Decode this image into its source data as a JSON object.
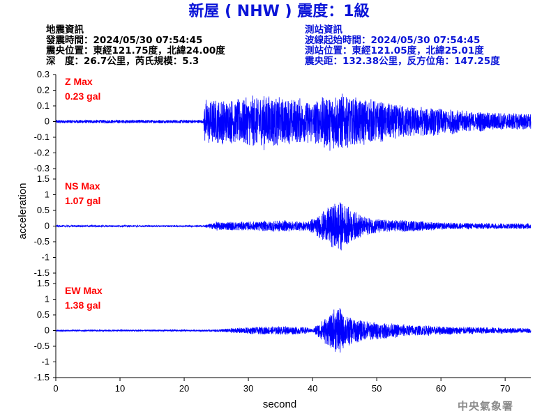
{
  "title": "新屋 ( NHW ) 震度：1級",
  "quake_info": {
    "heading": "地震資訊",
    "time": "發震時間：2024/05/30 07:54:45",
    "epicenter": "震央位置：東經121.75度，北緯24.00度",
    "depth": "深　度：26.7公里，芮氏規模：5.3"
  },
  "station_info": {
    "heading": "測站資訊",
    "wave_start": "波線起始時間：2024/05/30 07:54:45",
    "location": "測站位置：東經121.05度，北緯25.01度",
    "distance": "震央距：132.38公里，反方位角：147.25度"
  },
  "agency": "中央氣象署",
  "colors": {
    "title": "#0a14d8",
    "trace": "#0000ff",
    "max_label": "#ff0000",
    "station_text": "#0a14d8",
    "agency": "#8a8a8a"
  },
  "chart_data": {
    "type": "line",
    "xlabel": "second",
    "ylabel": "acceleration",
    "xlim": [
      0,
      74
    ],
    "x_ticks": [
      0,
      10,
      20,
      30,
      40,
      50,
      60,
      70
    ],
    "panels": [
      {
        "name": "Z",
        "max_label": "Z Max",
        "max_value": "0.23 gal",
        "ylim": [
          -0.3,
          0.3
        ],
        "y_ticks": [
          0.3,
          0.2,
          0.1,
          0,
          -0.1,
          -0.2,
          -0.3
        ],
        "envelope": [
          [
            0,
            0.012
          ],
          [
            23,
            0.012
          ],
          [
            23.2,
            0.16
          ],
          [
            28,
            0.15
          ],
          [
            32,
            0.19
          ],
          [
            36,
            0.16
          ],
          [
            40,
            0.15
          ],
          [
            43,
            0.2
          ],
          [
            46,
            0.18
          ],
          [
            50,
            0.14
          ],
          [
            55,
            0.11
          ],
          [
            60,
            0.09
          ],
          [
            65,
            0.07
          ],
          [
            70,
            0.06
          ],
          [
            74,
            0.06
          ]
        ]
      },
      {
        "name": "NS",
        "max_label": "NS Max",
        "max_value": "1.07 gal",
        "ylim": [
          -1.5,
          1.5
        ],
        "y_ticks": [
          1.5,
          1,
          0.5,
          0,
          -0.5,
          -1,
          -1.5
        ],
        "envelope": [
          [
            0,
            0.03
          ],
          [
            23,
            0.03
          ],
          [
            25,
            0.15
          ],
          [
            30,
            0.15
          ],
          [
            35,
            0.2
          ],
          [
            39,
            0.15
          ],
          [
            41,
            0.4
          ],
          [
            43,
            0.75
          ],
          [
            44,
            0.95
          ],
          [
            46,
            0.55
          ],
          [
            48,
            0.35
          ],
          [
            50,
            0.25
          ],
          [
            55,
            0.2
          ],
          [
            60,
            0.12
          ],
          [
            70,
            0.1
          ],
          [
            74,
            0.1
          ]
        ]
      },
      {
        "name": "EW",
        "max_label": "EW Max",
        "max_value": "1.38 gal",
        "ylim": [
          -1.5,
          1.5
        ],
        "y_ticks": [
          1.5,
          1,
          0.5,
          0,
          -0.5,
          -1,
          -1.5
        ],
        "envelope": [
          [
            0,
            0.03
          ],
          [
            24,
            0.03
          ],
          [
            26,
            0.06
          ],
          [
            30,
            0.12
          ],
          [
            35,
            0.15
          ],
          [
            39,
            0.12
          ],
          [
            40,
            0.05
          ],
          [
            41,
            0.3
          ],
          [
            43,
            0.6
          ],
          [
            44,
            0.95
          ],
          [
            45,
            0.55
          ],
          [
            47,
            0.4
          ],
          [
            50,
            0.3
          ],
          [
            55,
            0.2
          ],
          [
            60,
            0.15
          ],
          [
            70,
            0.1
          ],
          [
            74,
            0.08
          ]
        ]
      }
    ]
  }
}
